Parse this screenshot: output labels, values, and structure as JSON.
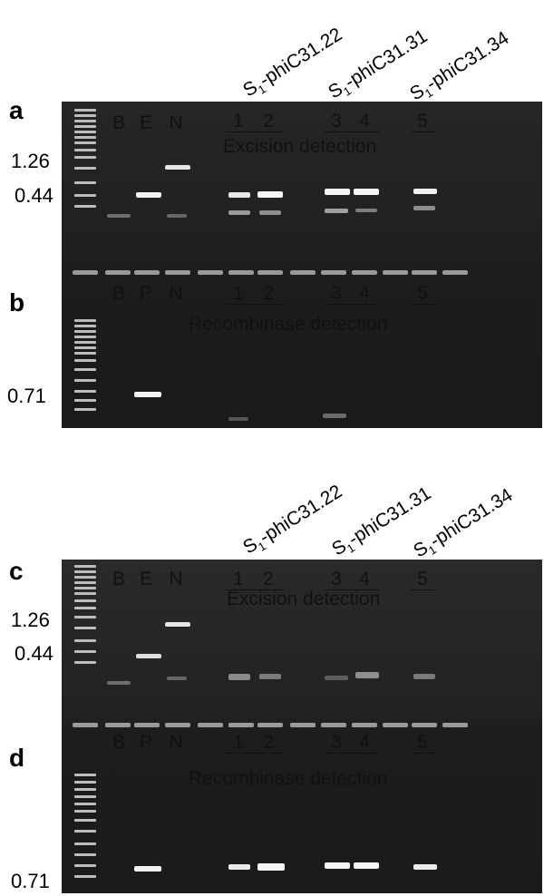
{
  "figure": {
    "top": {
      "strain_labels": [
        {
          "prefix": "S",
          "sub": "1",
          "suffix": "-phiC31.22"
        },
        {
          "prefix": "S",
          "sub": "1",
          "suffix": "-phiC31.31"
        },
        {
          "prefix": "S",
          "sub": "1",
          "suffix": "-phiC31.34"
        }
      ],
      "panel_a": {
        "letter": "a",
        "controls": [
          "B",
          "E",
          "N"
        ],
        "samples": [
          "1",
          "2",
          "3",
          "4",
          "5"
        ],
        "title": "Excision detection",
        "size_labels": [
          "1.26",
          "0.44"
        ]
      },
      "panel_b": {
        "letter": "b",
        "controls": [
          "B",
          "P",
          "N"
        ],
        "samples": [
          "1",
          "2",
          "3",
          "4",
          "5"
        ],
        "title": "Recombinase detection",
        "size_labels": [
          "0.71"
        ]
      }
    },
    "bottom": {
      "strain_labels": [
        {
          "prefix": "S",
          "sub": "1",
          "suffix": "-phiC31.22"
        },
        {
          "prefix": "S",
          "sub": "1",
          "suffix": "-phiC31.31"
        },
        {
          "prefix": "S",
          "sub": "1",
          "suffix": "-phiC31.34"
        }
      ],
      "panel_c": {
        "letter": "c",
        "controls": [
          "B",
          "E",
          "N"
        ],
        "samples": [
          "1",
          "2",
          "3",
          "4",
          "5"
        ],
        "title": "Excision detection",
        "size_labels": [
          "1.26",
          "0.44"
        ]
      },
      "panel_d": {
        "letter": "d",
        "controls": [
          "B",
          "P",
          "N"
        ],
        "samples": [
          "1",
          "2",
          "3",
          "4",
          "5"
        ],
        "title": "Recombinase detection",
        "size_labels": [
          "0.71"
        ]
      }
    }
  }
}
